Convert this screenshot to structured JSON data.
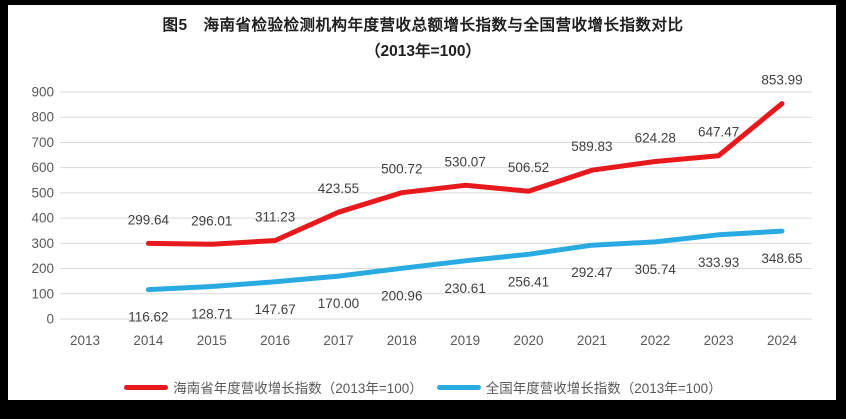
{
  "chart_data": {
    "type": "line",
    "title": "图5　海南省检验检测机构年度营收总额增长指数与全国营收增长指数对比",
    "subtitle": "（2013年=100）",
    "categories": [
      "2013",
      "2014",
      "2015",
      "2016",
      "2017",
      "2018",
      "2019",
      "2020",
      "2021",
      "2022",
      "2023",
      "2024"
    ],
    "ylim": [
      0,
      900
    ],
    "y_ticks": [
      0,
      100,
      200,
      300,
      400,
      500,
      600,
      700,
      800,
      900
    ],
    "grid": true,
    "legend_position": "bottom",
    "data_labels": true,
    "series": [
      {
        "name": "海南省年度营收增长指数（2013年=100）",
        "color": "#e8191c",
        "start_category": "2014",
        "label_position": "above",
        "values": [
          299.64,
          296.01,
          311.23,
          423.55,
          500.72,
          530.07,
          506.52,
          589.83,
          624.28,
          647.47,
          853.99
        ]
      },
      {
        "name": "全国年度营收增长指数（2013年=100）",
        "color": "#29abe2",
        "start_category": "2014",
        "label_position": "below",
        "values": [
          116.62,
          128.71,
          147.67,
          170.0,
          200.96,
          230.61,
          256.41,
          292.47,
          305.74,
          333.93,
          348.65
        ]
      }
    ]
  },
  "colors": {
    "frame": "#000000",
    "background": "#ffffff",
    "grid": "#d9d9d9",
    "axis_text": "#595959",
    "data_label_text": "#404040",
    "title_text": "#1f1f1f",
    "legend_text": "#595959"
  }
}
